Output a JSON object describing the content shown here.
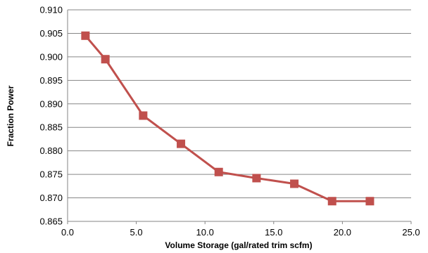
{
  "chart_data": {
    "type": "line",
    "xlabel": "Volume Storage (gal/rated trim scfm)",
    "ylabel": "Fraction Power",
    "xlim": [
      0,
      25
    ],
    "ylim": [
      0.865,
      0.91
    ],
    "x_ticks": [
      "0.0",
      "5.0",
      "10.0",
      "15.0",
      "20.0",
      "25.0"
    ],
    "y_ticks": [
      "0.865",
      "0.870",
      "0.875",
      "0.880",
      "0.885",
      "0.890",
      "0.895",
      "0.900",
      "0.905",
      "0.910"
    ],
    "grid": "horizontal",
    "legend": "none",
    "series": [
      {
        "color": "#c0504d",
        "marker": "square",
        "x": [
          1.3,
          2.75,
          5.5,
          8.25,
          11.0,
          13.75,
          16.5,
          19.25,
          22.0
        ],
        "y": [
          0.9045,
          0.8995,
          0.8875,
          0.8815,
          0.8755,
          0.8742,
          0.873,
          0.8693,
          0.8693
        ]
      }
    ]
  }
}
